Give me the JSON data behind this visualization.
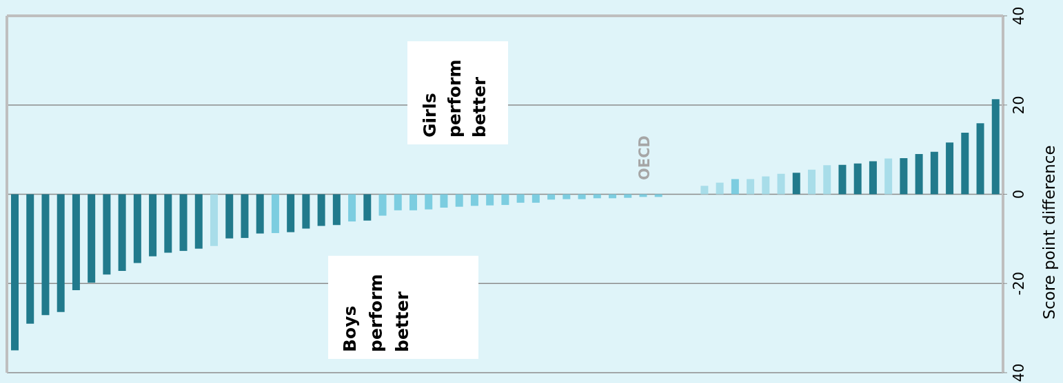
{
  "chart_data": {
    "type": "bar",
    "ylabel": "Score point difference",
    "annotations": [
      "Girls perform better",
      "Boys perform better",
      "OECD"
    ],
    "categories": [
      null,
      null,
      null,
      null,
      null,
      null,
      null,
      null,
      null,
      null,
      null,
      null,
      null,
      null,
      null,
      null,
      null,
      null,
      null,
      null,
      null,
      null,
      null,
      null,
      null,
      null,
      null,
      null,
      null,
      null,
      null,
      null,
      null,
      null,
      null,
      null,
      null,
      null,
      null,
      null,
      null,
      null,
      null,
      null,
      null,
      null,
      null,
      null,
      null,
      null,
      null,
      null,
      null,
      null,
      null,
      null,
      null,
      null,
      null,
      null,
      null,
      null,
      null,
      null,
      null
    ],
    "values": [
      -35.0,
      -29.0,
      -27.1,
      -26.4,
      -21.5,
      -19.8,
      -18.0,
      -17.2,
      -15.4,
      -13.9,
      -13.1,
      -12.7,
      -12.2,
      -11.6,
      -9.9,
      -9.8,
      -8.8,
      -8.7,
      -8.5,
      -7.7,
      -7.1,
      -6.9,
      -6.1,
      -5.9,
      -4.8,
      -3.6,
      -3.6,
      -3.4,
      -3.0,
      -2.8,
      -2.6,
      -2.5,
      -2.4,
      -1.9,
      -1.9,
      -1.2,
      -1.1,
      -1.1,
      -0.9,
      -0.9,
      -0.8,
      -0.6,
      -0.6,
      0,
      0,
      1.9,
      2.6,
      3.4,
      3.4,
      4.0,
      4.6,
      4.8,
      5.5,
      6.5,
      6.6,
      6.9,
      7.4,
      8.0,
      8.1,
      9.0,
      9.5,
      11.6,
      13.8,
      15.9,
      21.3
    ],
    "colors": [
      "#217a8c",
      "#217a8c",
      "#217a8c",
      "#217a8c",
      "#217a8c",
      "#217a8c",
      "#217a8c",
      "#217a8c",
      "#217a8c",
      "#217a8c",
      "#217a8c",
      "#217a8c",
      "#217a8c",
      "#a8dde9",
      "#217a8c",
      "#217a8c",
      "#217a8c",
      "#7ccde0",
      "#217a8c",
      "#217a8c",
      "#217a8c",
      "#217a8c",
      "#7ccde0",
      "#217a8c",
      "#7ccde0",
      "#7ccde0",
      "#7ccde0",
      "#7ccde0",
      "#7ccde0",
      "#7ccde0",
      "#7ccde0",
      "#7ccde0",
      "#7ccde0",
      "#7ccde0",
      "#7ccde0",
      "#7ccde0",
      "#7ccde0",
      "#7ccde0",
      "#7ccde0",
      "#7ccde0",
      "#7ccde0",
      "#7ccde0",
      "#7ccde0",
      "#7ccde0",
      "#7ccde0",
      "#a8dde9",
      "#a8dde9",
      "#7ccde0",
      "#a8dde9",
      "#a8dde9",
      "#a8dde9",
      "#217a8c",
      "#a8dde9",
      "#a8dde9",
      "#217a8c",
      "#217a8c",
      "#217a8c",
      "#a8dde9",
      "#217a8c",
      "#217a8c",
      "#217a8c",
      "#217a8c",
      "#217a8c",
      "#217a8c",
      "#217a8c"
    ],
    "ylim": [
      -40,
      40
    ],
    "yticks": [
      40,
      20,
      0,
      -20,
      {
        "value": -40,
        "label": "40"
      }
    ],
    "grid": "y"
  }
}
